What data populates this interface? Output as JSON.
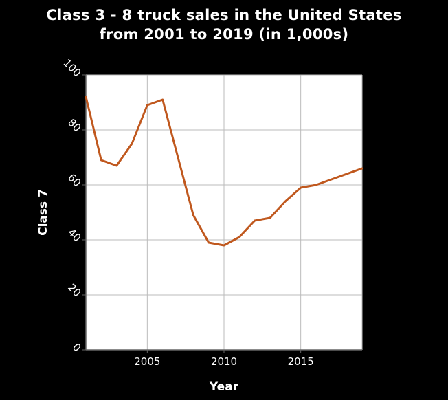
{
  "chart_data": {
    "type": "line",
    "title_line1": "Class 3 - 8 truck sales in the United States",
    "title_line2": "from 2001 to 2019 (in 1,000s)",
    "xlabel": "Year",
    "ylabel": "Class 7",
    "xlim": [
      2001,
      2019
    ],
    "ylim": [
      0,
      100
    ],
    "x_ticks": [
      2005,
      2010,
      2015
    ],
    "y_ticks": [
      0,
      20,
      40,
      60,
      80,
      100
    ],
    "grid": true,
    "series": [
      {
        "color": "#c0581e",
        "x": [
          2001,
          2002,
          2003,
          2004,
          2005,
          2006,
          2007,
          2008,
          2009,
          2010,
          2011,
          2012,
          2013,
          2014,
          2015,
          2016,
          2017,
          2018,
          2019
        ],
        "values": [
          92,
          69,
          67,
          75,
          89,
          91,
          70,
          49,
          39,
          38,
          41,
          47,
          48,
          54,
          59,
          60,
          62,
          64,
          66
        ]
      }
    ]
  },
  "colors": {
    "background": "#000000",
    "plot_area": "#ffffff",
    "grid": "#bbbbbb",
    "axis": "#666666",
    "text": "#ffffff"
  }
}
